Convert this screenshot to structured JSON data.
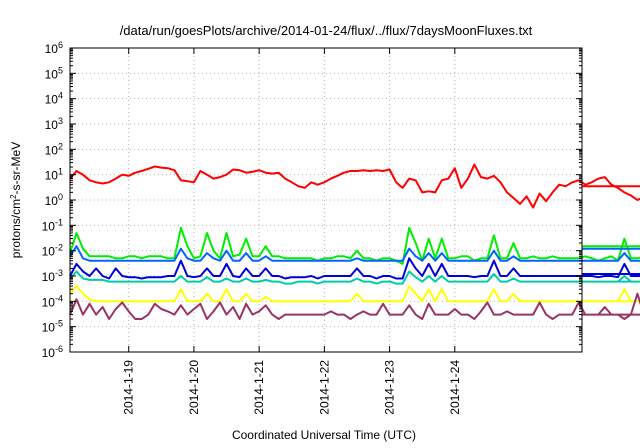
{
  "chart_data": {
    "type": "line",
    "title": "/data/run/goesPlots/archive/2014-01-24/flux/../flux/7daysMoonFluxes.txt",
    "xlabel": "Coordinated Universal Time (UTC)",
    "ylabel": {
      "pre": "protons/cm",
      "sup": "2",
      "post": "-s-sr-MeV"
    },
    "y_scale": "log",
    "ylim": [
      1e-06,
      1000000.0
    ],
    "y_ticks": [
      {
        "base": "10",
        "exp": "-6",
        "value": 1e-06
      },
      {
        "base": "10",
        "exp": "-5",
        "value": 1e-05
      },
      {
        "base": "10",
        "exp": "-4",
        "value": 0.0001
      },
      {
        "base": "10",
        "exp": "-3",
        "value": 0.001
      },
      {
        "base": "10",
        "exp": "-2",
        "value": 0.01
      },
      {
        "base": "10",
        "exp": "-1",
        "value": 0.1
      },
      {
        "base": "10",
        "exp": "0",
        "value": 1
      },
      {
        "base": "10",
        "exp": "1",
        "value": 10
      },
      {
        "base": "10",
        "exp": "2",
        "value": 100
      },
      {
        "base": "10",
        "exp": "3",
        "value": 1000
      },
      {
        "base": "10",
        "exp": "4",
        "value": 10000
      },
      {
        "base": "10",
        "exp": "5",
        "value": 100000
      },
      {
        "base": "10",
        "exp": "6",
        "value": 1000000
      }
    ],
    "xlim": [
      -0.9,
      6.95
    ],
    "x_ticks": [
      {
        "label": "2014-1-19",
        "value": 0
      },
      {
        "label": "2014-1-20",
        "value": 1
      },
      {
        "label": "2014-1-21",
        "value": 2
      },
      {
        "label": "2014-1-22",
        "value": 3
      },
      {
        "label": "2014-1-23",
        "value": 4
      },
      {
        "label": "2014-1-24",
        "value": 5
      }
    ],
    "x_unit_note": "x in days since 2014-01-19 00:00 UTC",
    "grid": true,
    "legend": "none",
    "series": [
      {
        "color": "#ff0000",
        "sample_step": 0.1,
        "extend_to": 6.95,
        "values": [
          7,
          14,
          10,
          6,
          5,
          4.5,
          5,
          7,
          10,
          9,
          12,
          14,
          17,
          21,
          19,
          18,
          15,
          6,
          5.5,
          5,
          14,
          10,
          7,
          8,
          10,
          16,
          15,
          12,
          13,
          15,
          12,
          11,
          12,
          7,
          5,
          3.5,
          3,
          5,
          4,
          5,
          7,
          9,
          12,
          14,
          14,
          15,
          14,
          15,
          14,
          16,
          5,
          3,
          7,
          6,
          2,
          2.2,
          2,
          6,
          7,
          18,
          3,
          7,
          25,
          8,
          7,
          9,
          5,
          2,
          1.2,
          0.7,
          1.4,
          0.5,
          1.8,
          0.9,
          2,
          4,
          3.5,
          5,
          6,
          4,
          5,
          7,
          8,
          4,
          3,
          2,
          1.5,
          1,
          1.3,
          1.4,
          0.9,
          1.1,
          2,
          3,
          4,
          8,
          5,
          3,
          3.5,
          3.5
        ]
      },
      {
        "color": "#00ee00",
        "sample_step": 0.1,
        "extend_to": 6.95,
        "values": [
          0.008,
          0.05,
          0.012,
          0.006,
          0.006,
          0.006,
          0.006,
          0.005,
          0.005,
          0.006,
          0.006,
          0.005,
          0.006,
          0.006,
          0.006,
          0.005,
          0.005,
          0.08,
          0.015,
          0.005,
          0.006,
          0.05,
          0.01,
          0.005,
          0.05,
          0.006,
          0.007,
          0.03,
          0.006,
          0.006,
          0.015,
          0.006,
          0.006,
          0.005,
          0.005,
          0.005,
          0.005,
          0.005,
          0.004,
          0.005,
          0.005,
          0.006,
          0.006,
          0.005,
          0.01,
          0.005,
          0.005,
          0.004,
          0.005,
          0.005,
          0.004,
          0.003,
          0.08,
          0.02,
          0.004,
          0.03,
          0.005,
          0.03,
          0.005,
          0.005,
          0.006,
          0.006,
          0.004,
          0.005,
          0.005,
          0.04,
          0.005,
          0.005,
          0.02,
          0.005,
          0.005,
          0.006,
          0.005,
          0.005,
          0.006,
          0.005,
          0.005,
          0.005,
          0.005,
          0.006,
          0.005,
          0.004,
          0.005,
          0.006,
          0.004,
          0.03,
          0.005,
          0.005,
          0.006,
          0.005,
          0.005,
          0.005,
          0.015,
          0.015,
          0.005,
          0.02,
          0.005,
          0.004,
          0.005,
          0.004,
          0.015
        ]
      },
      {
        "color": "#0066ff",
        "sample_step": 0.1,
        "extend_to": 6.95,
        "values": [
          0.006,
          0.015,
          0.005,
          0.004,
          0.004,
          0.004,
          0.004,
          0.004,
          0.004,
          0.004,
          0.004,
          0.004,
          0.004,
          0.004,
          0.004,
          0.004,
          0.004,
          0.012,
          0.005,
          0.004,
          0.004,
          0.008,
          0.005,
          0.004,
          0.01,
          0.004,
          0.004,
          0.008,
          0.004,
          0.004,
          0.006,
          0.004,
          0.004,
          0.004,
          0.004,
          0.004,
          0.004,
          0.004,
          0.004,
          0.004,
          0.004,
          0.004,
          0.004,
          0.004,
          0.005,
          0.004,
          0.004,
          0.004,
          0.004,
          0.004,
          0.004,
          0.004,
          0.012,
          0.006,
          0.004,
          0.008,
          0.004,
          0.008,
          0.004,
          0.004,
          0.004,
          0.004,
          0.004,
          0.004,
          0.004,
          0.01,
          0.004,
          0.004,
          0.006,
          0.004,
          0.004,
          0.004,
          0.004,
          0.004,
          0.004,
          0.004,
          0.004,
          0.004,
          0.004,
          0.004,
          0.004,
          0.004,
          0.004,
          0.004,
          0.004,
          0.008,
          0.004,
          0.004,
          0.004,
          0.004,
          0.004,
          0.004,
          0.005,
          0.005,
          0.004,
          0.006,
          0.004,
          0.004,
          0.004,
          0.004,
          0.012
        ]
      },
      {
        "color": "#0000dd",
        "sample_step": 0.1,
        "extend_to": 6.95,
        "values": [
          0.001,
          0.003,
          0.0015,
          0.001,
          0.002,
          0.001,
          0.0008,
          0.002,
          0.001,
          0.0009,
          0.0009,
          0.0008,
          0.0009,
          0.0009,
          0.0009,
          0.001,
          0.001,
          0.004,
          0.001,
          0.0009,
          0.001,
          0.002,
          0.001,
          0.001,
          0.003,
          0.001,
          0.0009,
          0.002,
          0.001,
          0.001,
          0.002,
          0.001,
          0.001,
          0.0008,
          0.0009,
          0.0009,
          0.0009,
          0.001,
          0.0008,
          0.001,
          0.001,
          0.001,
          0.001,
          0.001,
          0.002,
          0.001,
          0.001,
          0.0008,
          0.001,
          0.001,
          0.0008,
          0.0008,
          0.005,
          0.002,
          0.001,
          0.003,
          0.001,
          0.003,
          0.001,
          0.001,
          0.001,
          0.001,
          0.0009,
          0.001,
          0.001,
          0.004,
          0.001,
          0.001,
          0.002,
          0.001,
          0.001,
          0.001,
          0.001,
          0.001,
          0.001,
          0.001,
          0.001,
          0.001,
          0.001,
          0.001,
          0.001,
          0.0009,
          0.001,
          0.001,
          0.0009,
          0.003,
          0.001,
          0.001,
          0.001,
          0.001,
          0.001,
          0.001,
          0.002,
          0.002,
          0.001,
          0.002,
          0.001,
          0.001,
          0.001,
          0.001,
          0.0012
        ]
      },
      {
        "color": "#00ccaa",
        "sample_step": 0.1,
        "extend_to": 6.95,
        "values": [
          0.0008,
          0.0015,
          0.0008,
          0.0007,
          0.0007,
          0.0007,
          0.0006,
          0.0006,
          0.0006,
          0.0006,
          0.0006,
          0.0006,
          0.0006,
          0.0006,
          0.0006,
          0.0006,
          0.0006,
          0.001,
          0.0006,
          0.0006,
          0.0006,
          0.0009,
          0.0006,
          0.0006,
          0.0008,
          0.0006,
          0.0006,
          0.0008,
          0.0006,
          0.0006,
          0.0007,
          0.0006,
          0.0006,
          0.0005,
          0.0005,
          0.0006,
          0.0006,
          0.0006,
          0.0005,
          0.0006,
          0.0006,
          0.0006,
          0.0006,
          0.0006,
          0.0008,
          0.0006,
          0.0006,
          0.0005,
          0.0006,
          0.0006,
          0.0005,
          0.0005,
          0.0015,
          0.0009,
          0.0006,
          0.001,
          0.0006,
          0.001,
          0.0006,
          0.0006,
          0.0006,
          0.0006,
          0.0006,
          0.0006,
          0.0006,
          0.0012,
          0.0006,
          0.0006,
          0.0008,
          0.0006,
          0.0006,
          0.0006,
          0.0006,
          0.0006,
          0.0006,
          0.0006,
          0.0006,
          0.0006,
          0.0006,
          0.0006,
          0.0006,
          0.0006,
          0.0006,
          0.0006,
          0.0006,
          0.001,
          0.0006,
          0.0006,
          0.0006,
          0.0006,
          0.0006,
          0.0006,
          0.0008,
          0.0008,
          0.0006,
          0.0009,
          0.0006,
          0.0006,
          0.0006,
          0.0006,
          0.0006
        ]
      },
      {
        "color": "#ffff00",
        "sample_step": 0.1,
        "extend_to": 6.95,
        "values": [
          0.0002,
          0.0004,
          0.0002,
          0.00012,
          0.0001,
          0.0001,
          0.0001,
          0.0001,
          0.0001,
          0.0001,
          0.0001,
          0.0001,
          0.0001,
          0.0001,
          0.0001,
          0.0001,
          0.0001,
          0.0003,
          0.0001,
          0.0001,
          0.0001,
          0.0002,
          0.0001,
          0.0001,
          0.0003,
          0.0001,
          0.0001,
          0.0002,
          0.0001,
          0.0001,
          0.00015,
          0.0001,
          0.0001,
          0.0001,
          0.0001,
          0.0001,
          0.0001,
          0.0001,
          0.0001,
          0.0001,
          0.0001,
          0.0001,
          0.0001,
          0.0001,
          0.0002,
          0.0001,
          0.0001,
          0.0001,
          0.0001,
          0.0001,
          0.0001,
          0.0001,
          0.0004,
          0.0002,
          0.0001,
          0.0003,
          0.0001,
          0.0003,
          0.0001,
          0.0001,
          0.0001,
          0.0001,
          0.0001,
          0.0001,
          0.0001,
          0.0003,
          0.0001,
          0.0001,
          0.0002,
          0.0001,
          0.0001,
          0.0001,
          0.0001,
          0.0001,
          0.0001,
          0.0001,
          0.0001,
          0.0001,
          0.0001,
          0.0001,
          0.0001,
          0.0001,
          0.0001,
          0.0001,
          0.0001,
          0.0003,
          0.0001,
          0.0001,
          0.0001,
          0.0001,
          0.0001,
          0.0001,
          0.0002,
          0.0002,
          0.0001,
          0.0002,
          0.0001,
          0.0001,
          0.0001,
          0.0001,
          0.0001
        ]
      },
      {
        "color": "#993366",
        "sample_step": 0.1,
        "extend_to": 6.95,
        "values": [
          3e-05,
          0.00012,
          3e-05,
          8e-05,
          3e-05,
          6e-05,
          2e-05,
          5e-05,
          9e-05,
          4e-05,
          2e-05,
          2e-05,
          3e-05,
          8e-05,
          5e-05,
          4e-05,
          3e-05,
          7e-05,
          3e-05,
          5e-05,
          8e-05,
          2e-05,
          4e-05,
          9e-05,
          3e-05,
          6e-05,
          2e-05,
          8e-05,
          3e-05,
          4e-05,
          7e-05,
          3e-05,
          2e-05,
          3e-05,
          3e-05,
          3e-05,
          3e-05,
          3e-05,
          3e-05,
          3e-05,
          4e-05,
          3e-05,
          3e-05,
          2e-05,
          3e-05,
          4e-05,
          3e-05,
          3e-05,
          8e-05,
          3e-05,
          3e-05,
          3e-05,
          7e-05,
          3e-05,
          2e-05,
          8e-05,
          3e-05,
          3e-05,
          3e-05,
          5e-05,
          3e-05,
          3e-05,
          2e-05,
          4e-05,
          9e-05,
          3e-05,
          3e-05,
          4e-05,
          3e-05,
          3e-05,
          3e-05,
          3e-05,
          9e-05,
          3e-05,
          2e-05,
          3e-05,
          3e-05,
          3e-05,
          9e-05,
          3e-05,
          3e-05,
          3e-05,
          6e-05,
          3e-05,
          3e-05,
          2e-05,
          3e-05,
          0.0002,
          3e-05,
          3e-05,
          3e-05,
          3e-05,
          3e-05,
          3e-05,
          3e-05,
          3e-05,
          9e-05,
          3e-05,
          3e-05,
          3e-05,
          3e-05
        ]
      }
    ]
  }
}
